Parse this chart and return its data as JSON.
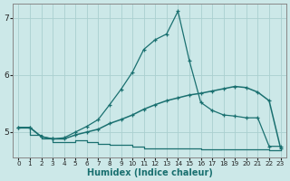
{
  "xlabel": "Humidex (Indice chaleur)",
  "ylabel": "",
  "xlim": [
    -0.5,
    23.5
  ],
  "ylim": [
    4.55,
    7.25
  ],
  "yticks": [
    5,
    6,
    7
  ],
  "xticks": [
    0,
    1,
    2,
    3,
    4,
    5,
    6,
    7,
    8,
    9,
    10,
    11,
    12,
    13,
    14,
    15,
    16,
    17,
    18,
    19,
    20,
    21,
    22,
    23
  ],
  "background_color": "#cce8e8",
  "grid_color": "#aad0d0",
  "line_color": "#1a7070",
  "curve_peaked_x": [
    0,
    1,
    2,
    3,
    4,
    5,
    6,
    7,
    8,
    9,
    10,
    11,
    12,
    13,
    14,
    15,
    16,
    17,
    18,
    19,
    20,
    21,
    22,
    23
  ],
  "curve_peaked_y": [
    5.08,
    5.08,
    4.92,
    4.88,
    4.9,
    5.0,
    5.1,
    5.22,
    5.48,
    5.75,
    6.05,
    6.45,
    6.62,
    6.72,
    7.12,
    6.25,
    5.52,
    5.38,
    5.3,
    5.28,
    5.25,
    5.25,
    4.75,
    4.75
  ],
  "curve_smooth_x": [
    0,
    1,
    2,
    3,
    4,
    5,
    6,
    7,
    8,
    9,
    10,
    11,
    12,
    13,
    14,
    15,
    16,
    17,
    18,
    19,
    20,
    21,
    22,
    23
  ],
  "curve_smooth_y": [
    5.08,
    5.08,
    4.92,
    4.88,
    4.88,
    4.95,
    5.0,
    5.05,
    5.15,
    5.22,
    5.3,
    5.4,
    5.48,
    5.55,
    5.6,
    5.65,
    5.68,
    5.72,
    5.76,
    5.8,
    5.78,
    5.7,
    5.55,
    4.72
  ],
  "curve_step_x": [
    0,
    1,
    2,
    3,
    4,
    5,
    6,
    7,
    8,
    9,
    10,
    11,
    12,
    13,
    14,
    15,
    16,
    17,
    18,
    19,
    20,
    21,
    22,
    23
  ],
  "curve_step_y": [
    5.08,
    4.95,
    4.88,
    4.82,
    4.82,
    4.85,
    4.82,
    4.8,
    4.78,
    4.78,
    4.75,
    4.72,
    4.72,
    4.72,
    4.72,
    4.72,
    4.7,
    4.7,
    4.7,
    4.7,
    4.7,
    4.7,
    4.68,
    4.68
  ]
}
